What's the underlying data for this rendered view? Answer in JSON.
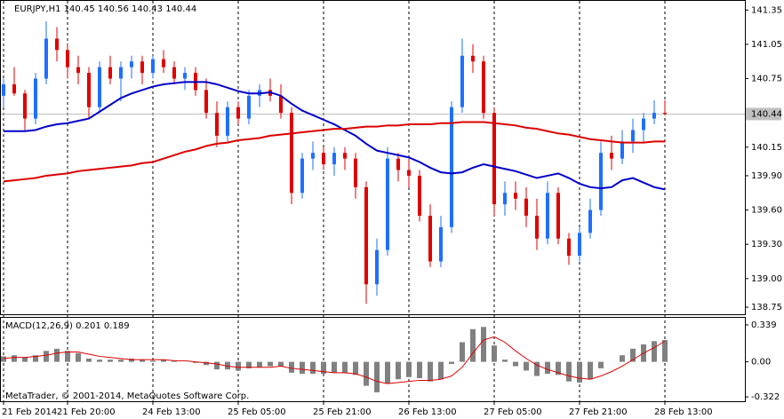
{
  "chart_data": [
    {
      "type": "candlestick",
      "title": "EURJPY,H1  140.45 140.56 140.43 140.44",
      "xticks": [
        {
          "value": 0,
          "label": "21 Feb 2014"
        },
        {
          "value": 6,
          "label": "21 Feb 20:00"
        },
        {
          "value": 14,
          "label": "24 Feb 13:00"
        },
        {
          "value": 22,
          "label": "25 Feb 05:00"
        },
        {
          "value": 30,
          "label": "25 Feb 21:00"
        },
        {
          "value": 38,
          "label": "26 Feb 13:00"
        },
        {
          "value": 46,
          "label": "27 Feb 05:00"
        },
        {
          "value": 54,
          "label": "27 Feb 21:00"
        },
        {
          "value": 62,
          "label": "28 Feb 13:00"
        }
      ],
      "open": [
        140.6,
        140.7,
        140.62,
        140.4,
        140.75,
        141.1,
        141.0,
        140.85,
        140.8,
        140.5,
        140.85,
        140.75,
        140.85,
        140.9,
        140.8,
        140.92,
        140.85,
        140.75,
        140.8,
        140.65,
        140.45,
        140.25,
        140.5,
        140.4,
        140.6,
        140.65,
        140.6,
        140.45,
        139.75,
        140.05,
        140.1,
        140.0,
        140.1,
        140.05,
        139.8,
        138.95,
        139.25,
        140.05,
        139.95,
        139.9,
        139.55,
        139.15,
        139.45,
        140.5,
        140.95,
        140.9,
        140.45,
        139.65,
        139.75,
        139.7,
        139.55,
        139.35,
        139.75,
        139.35,
        139.2,
        139.4,
        139.6,
        140.1,
        140.05,
        140.2,
        140.3,
        140.4,
        140.45
      ],
      "high": [
        140.75,
        140.85,
        140.65,
        140.8,
        141.25,
        141.2,
        141.05,
        140.95,
        140.85,
        140.9,
        140.95,
        140.9,
        140.95,
        140.95,
        140.95,
        141.0,
        140.9,
        140.85,
        140.85,
        140.75,
        140.55,
        140.55,
        140.55,
        140.65,
        140.7,
        140.75,
        140.7,
        140.5,
        140.1,
        140.2,
        140.15,
        140.15,
        140.15,
        140.1,
        139.85,
        139.35,
        140.15,
        140.1,
        140.05,
        139.95,
        139.65,
        139.55,
        140.55,
        141.1,
        141.05,
        140.95,
        140.5,
        139.85,
        139.85,
        139.8,
        139.7,
        139.85,
        139.8,
        139.4,
        139.45,
        139.7,
        140.2,
        140.25,
        140.3,
        140.4,
        140.45,
        140.56,
        140.56
      ],
      "low": [
        140.5,
        140.6,
        140.3,
        140.35,
        140.7,
        140.9,
        140.75,
        140.7,
        140.4,
        140.45,
        140.7,
        140.55,
        140.75,
        140.7,
        140.75,
        140.8,
        140.7,
        140.65,
        140.6,
        140.4,
        140.15,
        140.2,
        140.35,
        140.35,
        140.5,
        140.55,
        140.4,
        139.65,
        139.7,
        139.95,
        139.95,
        139.9,
        139.95,
        139.7,
        138.78,
        138.85,
        139.2,
        139.85,
        139.8,
        139.5,
        139.1,
        139.1,
        139.4,
        140.45,
        140.8,
        140.4,
        139.55,
        139.55,
        139.6,
        139.45,
        139.25,
        139.3,
        139.3,
        139.12,
        139.15,
        139.35,
        139.55,
        139.95,
        140.0,
        140.1,
        140.2,
        140.35,
        140.43
      ],
      "close": [
        140.7,
        140.62,
        140.4,
        140.75,
        141.1,
        141.0,
        140.85,
        140.8,
        140.5,
        140.85,
        140.75,
        140.85,
        140.9,
        140.8,
        140.92,
        140.85,
        140.75,
        140.8,
        140.65,
        140.45,
        140.25,
        140.5,
        140.4,
        140.6,
        140.65,
        140.6,
        140.45,
        139.75,
        140.05,
        140.1,
        140.0,
        140.1,
        140.05,
        139.8,
        138.95,
        139.25,
        140.05,
        139.95,
        139.9,
        139.55,
        139.15,
        139.45,
        140.5,
        140.95,
        140.9,
        140.45,
        139.65,
        139.75,
        139.7,
        139.55,
        139.35,
        139.75,
        139.35,
        139.2,
        139.4,
        139.6,
        140.1,
        140.05,
        140.2,
        140.3,
        140.4,
        140.45,
        140.44
      ],
      "up_color": "#1e6fff",
      "down_color": "#e00000",
      "series": [
        {
          "color": "#0000c8",
          "values": [
            140.29,
            140.29,
            140.29,
            140.3,
            140.33,
            140.35,
            140.36,
            140.38,
            140.4,
            140.46,
            140.52,
            140.58,
            140.62,
            140.65,
            140.68,
            140.7,
            140.71,
            140.72,
            140.72,
            140.72,
            140.7,
            140.67,
            140.64,
            140.62,
            140.62,
            140.63,
            140.6,
            140.53,
            140.47,
            140.43,
            140.39,
            140.35,
            140.3,
            140.25,
            140.18,
            140.12,
            140.1,
            140.08,
            140.06,
            140.02,
            139.97,
            139.93,
            139.92,
            139.93,
            139.97,
            140.0,
            139.98,
            139.96,
            139.94,
            139.91,
            139.88,
            139.9,
            139.92,
            139.88,
            139.83,
            139.8,
            139.79,
            139.8,
            139.86,
            139.88,
            139.84,
            139.8,
            139.78
          ]
        },
        {
          "color": "#dc0000",
          "values": [
            139.85,
            139.86,
            139.87,
            139.88,
            139.9,
            139.91,
            139.92,
            139.94,
            139.95,
            139.96,
            139.97,
            139.98,
            139.99,
            140.01,
            140.02,
            140.05,
            140.08,
            140.11,
            140.13,
            140.16,
            140.18,
            140.19,
            140.21,
            140.22,
            140.23,
            140.25,
            140.26,
            140.27,
            140.28,
            140.29,
            140.3,
            140.31,
            140.31,
            140.32,
            140.33,
            140.33,
            140.34,
            140.34,
            140.35,
            140.35,
            140.35,
            140.36,
            140.36,
            140.37,
            140.37,
            140.37,
            140.36,
            140.35,
            140.34,
            140.32,
            140.31,
            140.29,
            140.27,
            140.26,
            140.24,
            140.22,
            140.21,
            140.2,
            140.19,
            140.19,
            140.19,
            140.2,
            140.2
          ]
        }
      ],
      "last_price": 140.44,
      "ylim": [
        138.68,
        141.43
      ],
      "yticks": [
        141.35,
        141.05,
        140.75,
        140.15,
        {
          "value": 139.9,
          "label": "139.90"
        },
        {
          "value": 139.6,
          "label": "139.60"
        },
        {
          "value": 139.3,
          "label": "139.30"
        },
        {
          "value": 139,
          "label": "139.00"
        },
        138.75
      ],
      "grid": true
    },
    {
      "type": "macd",
      "title": "MACD(12,26,9) 0.201 0.189",
      "annotation": "MetaTrader, © 2001-2014, MetaQuotes Software Corp.",
      "series": [
        {
          "color": "#808080",
          "values": [
            0.05,
            0.06,
            0.04,
            0.06,
            0.1,
            0.12,
            0.1,
            0.08,
            0.03,
            0.02,
            0.02,
            0.02,
            0.03,
            0.02,
            0.01,
            0.02,
            0.01,
            0.0,
            -0.01,
            -0.03,
            -0.07,
            -0.07,
            -0.08,
            -0.06,
            -0.05,
            -0.04,
            -0.04,
            -0.1,
            -0.11,
            -0.11,
            -0.11,
            -0.1,
            -0.1,
            -0.12,
            -0.22,
            -0.28,
            -0.2,
            -0.16,
            -0.14,
            -0.15,
            -0.18,
            -0.16,
            -0.02,
            0.18,
            0.3,
            0.32,
            0.15,
            0.02,
            -0.04,
            -0.08,
            -0.13,
            -0.11,
            -0.12,
            -0.18,
            -0.19,
            -0.16,
            -0.06,
            0.0,
            0.06,
            0.12,
            0.16,
            0.19,
            0.2
          ]
        },
        {
          "color": "#dc0000",
          "values": [
            0.03,
            0.04,
            0.04,
            0.05,
            0.06,
            0.08,
            0.09,
            0.09,
            0.07,
            0.05,
            0.04,
            0.03,
            0.02,
            0.02,
            0.02,
            0.02,
            0.01,
            0.01,
            0.0,
            -0.01,
            -0.02,
            -0.04,
            -0.05,
            -0.05,
            -0.05,
            -0.05,
            -0.04,
            -0.06,
            -0.07,
            -0.08,
            -0.09,
            -0.1,
            -0.1,
            -0.11,
            -0.14,
            -0.18,
            -0.2,
            -0.19,
            -0.18,
            -0.17,
            -0.17,
            -0.16,
            -0.13,
            -0.05,
            0.08,
            0.2,
            0.23,
            0.18,
            0.1,
            0.03,
            -0.03,
            -0.07,
            -0.1,
            -0.13,
            -0.15,
            -0.16,
            -0.13,
            -0.09,
            -0.04,
            0.02,
            0.08,
            0.13,
            0.19
          ]
        }
      ],
      "ylim": [
        -0.362,
        0.404
      ],
      "yticks": [
        0.339,
        {
          "value": 0,
          "label": "0.00"
        },
        -0.322
      ]
    }
  ]
}
